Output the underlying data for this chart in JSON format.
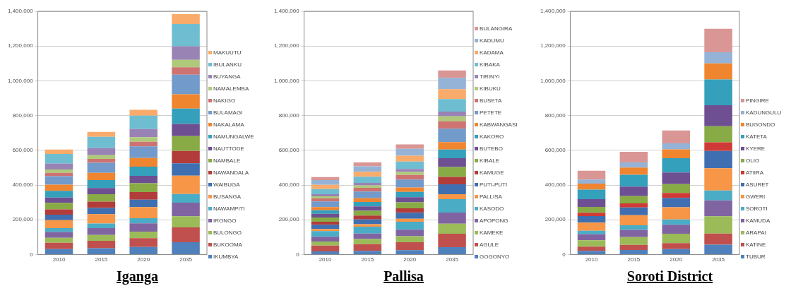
{
  "chart_data": [
    {
      "type": "bar",
      "title": "Iganga",
      "stacked": true,
      "categories": [
        "2010",
        "2015",
        "2020",
        "2035"
      ],
      "ylim": [
        0,
        1400000
      ],
      "yticks": [
        {
          "value": 0,
          "label": "0"
        },
        {
          "value": 200000,
          "label": "200,000"
        },
        {
          "value": 400000,
          "label": "400,000"
        },
        {
          "value": 600000,
          "label": "600,000"
        },
        {
          "value": 800000,
          "label": "800,000"
        },
        {
          "value": 1000000,
          "label": "1,000,000"
        },
        {
          "value": 1200000,
          "label": "1,200,000"
        },
        {
          "value": 1400000,
          "label": "1,400,000"
        }
      ],
      "grid": "y",
      "legend": "right",
      "series": [
        {
          "name": "IKUMBYA",
          "color": "#4f81bd",
          "values": [
            31000,
            36000,
            43000,
            71000
          ]
        },
        {
          "name": "BUKOOMA",
          "color": "#c0504d",
          "values": [
            37000,
            43000,
            51000,
            85000
          ]
        },
        {
          "name": "BULONGO",
          "color": "#9bbb59",
          "values": [
            28000,
            33000,
            38000,
            64000
          ]
        },
        {
          "name": "IRONGO",
          "color": "#8064a2",
          "values": [
            34000,
            40000,
            47000,
            78000
          ]
        },
        {
          "name": "NAWAMPITI",
          "color": "#4bacc6",
          "values": [
            22000,
            26000,
            30000,
            50000
          ]
        },
        {
          "name": "BUSANGA",
          "color": "#f79646",
          "values": [
            46000,
            54000,
            64000,
            106000
          ]
        },
        {
          "name": "WAIBUGA",
          "color": "#3f6fb0",
          "values": [
            31000,
            36000,
            43000,
            71000
          ]
        },
        {
          "name": "NAWANDALA",
          "color": "#b23c39",
          "values": [
            31000,
            36000,
            43000,
            71000
          ]
        },
        {
          "name": "NAMBALE",
          "color": "#88ab45",
          "values": [
            37000,
            43000,
            51000,
            85000
          ]
        },
        {
          "name": "NAUTTODE",
          "color": "#6d4f92",
          "values": [
            31000,
            36000,
            43000,
            71000
          ]
        },
        {
          "name": "NAMUNGALWE",
          "color": "#34a0bb",
          "values": [
            38000,
            45000,
            53000,
            88000
          ]
        },
        {
          "name": "NAKALAMA",
          "color": "#f0852f",
          "values": [
            36000,
            42000,
            49000,
            82000
          ]
        },
        {
          "name": "BULAMAGI",
          "color": "#729aca",
          "values": [
            49000,
            58000,
            68000,
            113000
          ]
        },
        {
          "name": "NAKIGO",
          "color": "#cd7371",
          "values": [
            19000,
            22000,
            26000,
            43000
          ]
        },
        {
          "name": "NAMALEMBA",
          "color": "#afc97a",
          "values": [
            19000,
            22000,
            26000,
            43000
          ]
        },
        {
          "name": "BUYANGA",
          "color": "#9983b5",
          "values": [
            34000,
            40000,
            47000,
            78000
          ]
        },
        {
          "name": "IBULANKU",
          "color": "#6fbdd1",
          "values": [
            56000,
            65000,
            77000,
            128000
          ]
        },
        {
          "name": "MAKUUTU",
          "color": "#f9ab6b",
          "values": [
            25000,
            29000,
            34000,
            57000
          ]
        }
      ]
    },
    {
      "type": "bar",
      "title": "Pallisa",
      "stacked": true,
      "categories": [
        "2010",
        "2015",
        "2020",
        "2035"
      ],
      "ylim": [
        0,
        1400000
      ],
      "yticks": [
        {
          "value": 0,
          "label": "0"
        },
        {
          "value": 200000,
          "label": "200,000"
        },
        {
          "value": 400000,
          "label": "400,000"
        },
        {
          "value": 600000,
          "label": "600,000"
        },
        {
          "value": 800000,
          "label": "800,000"
        },
        {
          "value": 1000000,
          "label": "1,000,000"
        },
        {
          "value": 1200000,
          "label": "1,200,000"
        },
        {
          "value": 1400000,
          "label": "1,400,000"
        }
      ],
      "grid": "y",
      "legend": "right",
      "series": [
        {
          "name": "GOGONYO",
          "color": "#4f81bd",
          "values": [
            18000,
            21000,
            25000,
            42000
          ]
        },
        {
          "name": "AGULE",
          "color": "#c0504d",
          "values": [
            33000,
            39000,
            46000,
            78000
          ]
        },
        {
          "name": "KAMEKE",
          "color": "#9bbb59",
          "values": [
            24000,
            29000,
            34000,
            57000
          ]
        },
        {
          "name": "APOPONG",
          "color": "#8064a2",
          "values": [
            27000,
            32000,
            38000,
            64000
          ]
        },
        {
          "name": "KASODO",
          "color": "#4bacc6",
          "values": [
            33000,
            39000,
            46000,
            78000
          ]
        },
        {
          "name": "PALLISA",
          "color": "#f79646",
          "values": [
            12000,
            14000,
            17000,
            28000
          ]
        },
        {
          "name": "PUTI-PUTI",
          "color": "#3f6fb0",
          "values": [
            24000,
            28000,
            34000,
            57000
          ]
        },
        {
          "name": "KAMUGE",
          "color": "#b23c39",
          "values": [
            18000,
            22000,
            26000,
            43000
          ]
        },
        {
          "name": "KIBALE",
          "color": "#88ab45",
          "values": [
            24000,
            28000,
            34000,
            57000
          ]
        },
        {
          "name": "BUTEBO",
          "color": "#6d4f92",
          "values": [
            21000,
            25000,
            30000,
            50000
          ]
        },
        {
          "name": "KAKORO",
          "color": "#34a0bb",
          "values": [
            21000,
            25000,
            30000,
            50000
          ]
        },
        {
          "name": "KABWANGASI",
          "color": "#f0852f",
          "values": [
            18000,
            22000,
            26000,
            43000
          ]
        },
        {
          "name": "PETETE",
          "color": "#729aca",
          "values": [
            32000,
            38000,
            46000,
            77000
          ]
        },
        {
          "name": "BUSETA",
          "color": "#cd7371",
          "values": [
            18000,
            22000,
            26000,
            43000
          ]
        },
        {
          "name": "KIBUKU",
          "color": "#afc97a",
          "values": [
            12000,
            14000,
            17000,
            28000
          ]
        },
        {
          "name": "TIRINYI",
          "color": "#9983b5",
          "values": [
            12000,
            14000,
            17000,
            28000
          ]
        },
        {
          "name": "KIBAKA",
          "color": "#6fbdd1",
          "values": [
            30000,
            36000,
            43000,
            72000
          ]
        },
        {
          "name": "KADAMA",
          "color": "#f9ab6b",
          "values": [
            24000,
            28000,
            34000,
            57000
          ]
        },
        {
          "name": "KADUMU",
          "color": "#95b3d7",
          "values": [
            27000,
            32000,
            39000,
            65000
          ]
        },
        {
          "name": "BULANGIRA",
          "color": "#d99694",
          "values": [
            18000,
            22000,
            26000,
            43000
          ]
        }
      ]
    },
    {
      "type": "bar",
      "title": "Soroti District",
      "stacked": true,
      "categories": [
        "2010",
        "2015",
        "2020",
        "2035"
      ],
      "ylim": [
        0,
        1400000
      ],
      "yticks": [
        {
          "value": 0,
          "label": "0"
        },
        {
          "value": 200000,
          "label": "200,000"
        },
        {
          "value": 400000,
          "label": "400,000"
        },
        {
          "value": 600000,
          "label": "600,000"
        },
        {
          "value": 800000,
          "label": "800,000"
        },
        {
          "value": 1000000,
          "label": "1,000,000"
        },
        {
          "value": 1200000,
          "label": "1,200,000"
        },
        {
          "value": 1400000,
          "label": "1,400,000"
        }
      ],
      "grid": "y",
      "legend": "right",
      "series": [
        {
          "name": "TUBUR",
          "color": "#4f81bd",
          "values": [
            21000,
            26000,
            31000,
            57000
          ]
        },
        {
          "name": "KATINE",
          "color": "#c0504d",
          "values": [
            24000,
            29000,
            35000,
            64000
          ]
        },
        {
          "name": "ARAPAI",
          "color": "#9bbb59",
          "values": [
            37000,
            45000,
            54000,
            99000
          ]
        },
        {
          "name": "KAMUDA",
          "color": "#8064a2",
          "values": [
            34000,
            42000,
            51000,
            92000
          ]
        },
        {
          "name": "SOROTI",
          "color": "#4bacc6",
          "values": [
            21000,
            26000,
            31000,
            57000
          ]
        },
        {
          "name": "GWERI",
          "color": "#f79646",
          "values": [
            47000,
            58000,
            70000,
            128000
          ]
        },
        {
          "name": "ASURET",
          "color": "#3f6fb0",
          "values": [
            37000,
            45000,
            54000,
            99000
          ]
        },
        {
          "name": "ATIIRA",
          "color": "#d03a36",
          "values": [
            19000,
            23000,
            28000,
            50000
          ]
        },
        {
          "name": "OLIO",
          "color": "#88ab45",
          "values": [
            34000,
            42000,
            51000,
            92000
          ]
        },
        {
          "name": "KYERE",
          "color": "#6d4f92",
          "values": [
            45000,
            55000,
            67000,
            121000
          ]
        },
        {
          "name": "KATETA",
          "color": "#34a0bb",
          "values": [
            55000,
            68000,
            82000,
            149000
          ]
        },
        {
          "name": "BUGONDO",
          "color": "#f0852f",
          "values": [
            34000,
            42000,
            51000,
            92000
          ]
        },
        {
          "name": "KADUNGULU",
          "color": "#95b3d7",
          "values": [
            24000,
            29000,
            35000,
            64000
          ]
        },
        {
          "name": "PINGIRE",
          "color": "#d99694",
          "values": [
            50000,
            61000,
            74000,
            135000
          ]
        }
      ]
    }
  ]
}
